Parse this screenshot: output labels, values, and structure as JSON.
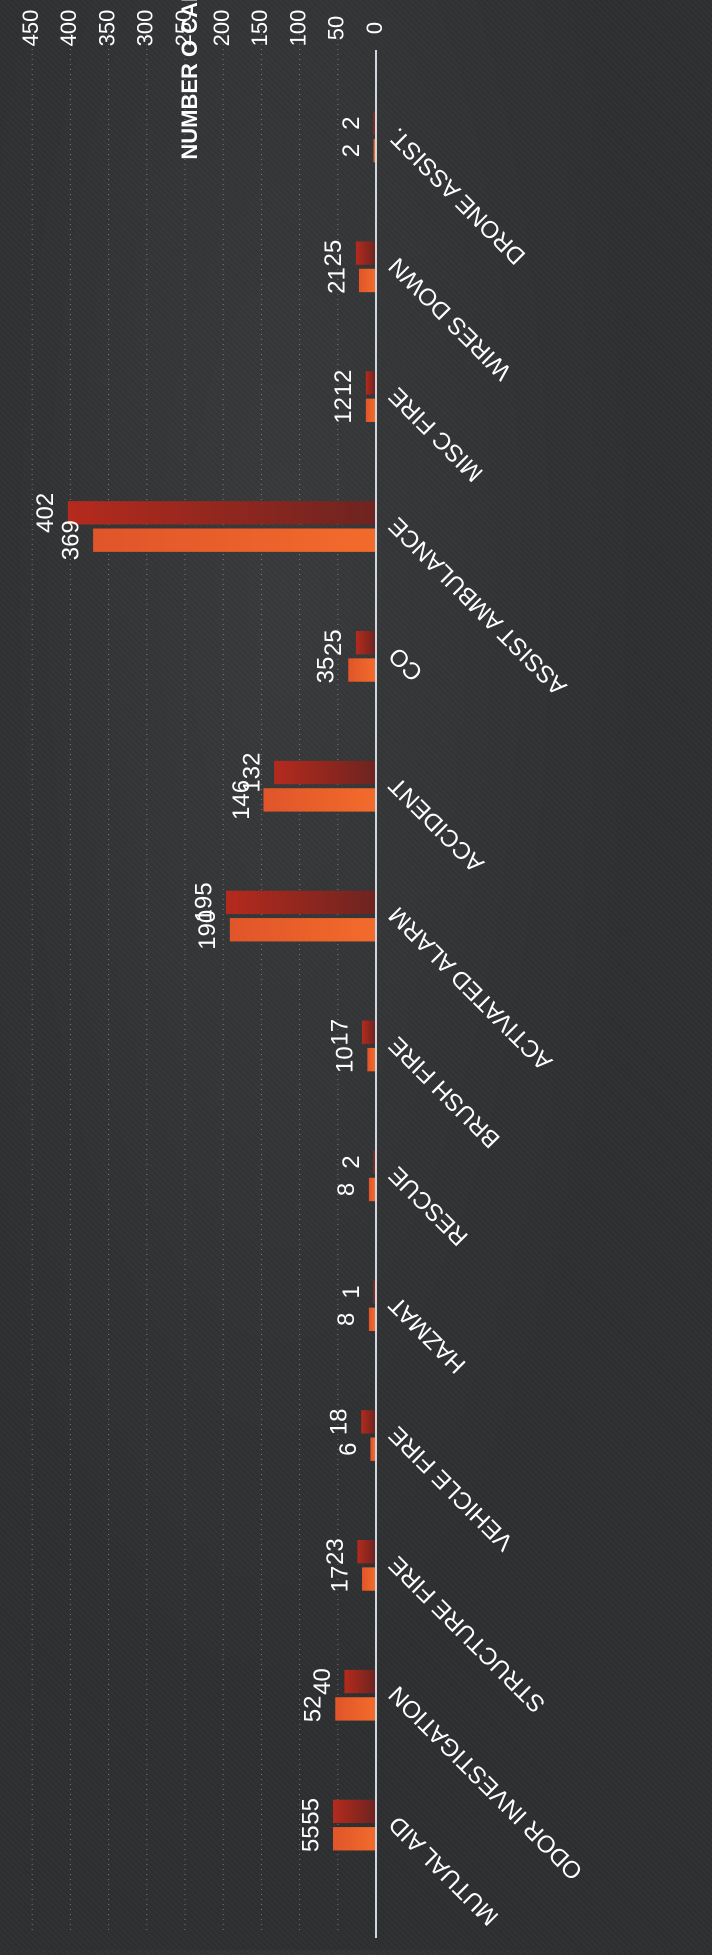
{
  "chart_data": {
    "type": "bar",
    "orientation": "rotated-180",
    "ylabel": "NUMBER O CALLS",
    "xlabel": "",
    "ylim": [
      0,
      450
    ],
    "yticks": [
      0,
      50,
      100,
      150,
      200,
      250,
      300,
      350,
      400,
      450
    ],
    "grid": true,
    "legend": "none",
    "categories": [
      "MUTUAL AID",
      "ODOR INVESTIGATION",
      "STRUCTURE FIRE",
      "VEHICLE FIRE",
      "HAZMAT",
      "RESCUE",
      "BRUSH FIRE",
      "ACTIVATED ALARM",
      "ACCIDENT",
      "CO",
      "ASSIST AMBULANCE",
      "MISC FIRE",
      "WIRES DOWN",
      "DRONE ASSIST."
    ],
    "series": [
      {
        "values": [
          55,
          52,
          17,
          6,
          8,
          8,
          10,
          190,
          146,
          35,
          369,
          12,
          21,
          2
        ],
        "color": "#f0642a"
      },
      {
        "values": [
          55,
          40,
          23,
          18,
          1,
          2,
          17,
          195,
          132,
          25,
          402,
          12,
          25,
          2
        ],
        "color": "#a3281c"
      }
    ]
  }
}
